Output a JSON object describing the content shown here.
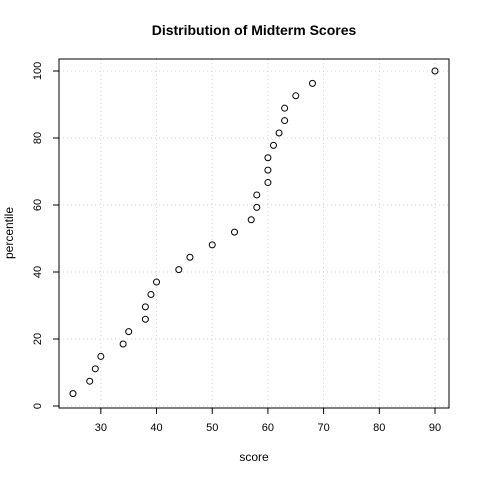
{
  "chart_data": {
    "type": "scatter",
    "title": "Distribution of Midterm Scores",
    "xlabel": "score",
    "ylabel": "percentile",
    "xlim": [
      23,
      92
    ],
    "ylim": [
      0,
      100
    ],
    "xticks": [
      30,
      40,
      50,
      60,
      70,
      80,
      90
    ],
    "yticks": [
      0,
      20,
      40,
      60,
      80,
      100
    ],
    "grid": true,
    "series": [
      {
        "points": [
          [
            25,
            3.7
          ],
          [
            28,
            7.4
          ],
          [
            29,
            11.1
          ],
          [
            30,
            14.8
          ],
          [
            34,
            18.5
          ],
          [
            35,
            22.2
          ],
          [
            38,
            25.9
          ],
          [
            38,
            29.6
          ],
          [
            39,
            33.3
          ],
          [
            40,
            37.0
          ],
          [
            44,
            40.7
          ],
          [
            46,
            44.4
          ],
          [
            50,
            48.1
          ],
          [
            54,
            51.9
          ],
          [
            57,
            55.6
          ],
          [
            58,
            59.3
          ],
          [
            58,
            63.0
          ],
          [
            60,
            66.7
          ],
          [
            60,
            70.4
          ],
          [
            60,
            74.1
          ],
          [
            61,
            77.8
          ],
          [
            62,
            81.5
          ],
          [
            63,
            85.2
          ],
          [
            63,
            88.9
          ],
          [
            65,
            92.6
          ],
          [
            68,
            96.3
          ],
          [
            90,
            100
          ]
        ]
      }
    ]
  }
}
